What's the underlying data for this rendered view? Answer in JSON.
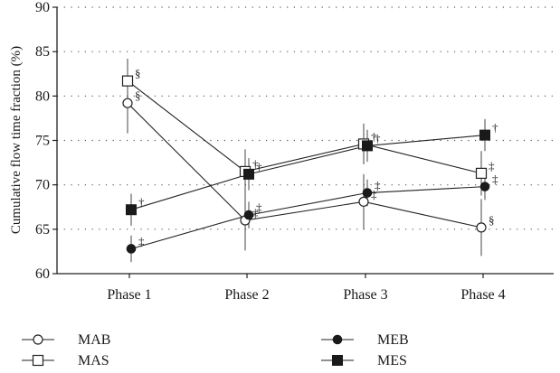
{
  "chart_data": {
    "type": "line",
    "ylabel": "Cumulative flow time fraction (%)",
    "xlabel": "",
    "ylim": [
      60,
      90
    ],
    "yticks": [
      60,
      65,
      70,
      75,
      80,
      85,
      90
    ],
    "categories": [
      "Phase 1",
      "Phase 2",
      "Phase 3",
      "Phase 4"
    ],
    "grid": "horizontal dotted",
    "legend_position": "bottom",
    "series": [
      {
        "name": "MAB",
        "marker": "open-circle",
        "values": [
          79.2,
          66.0,
          68.1,
          65.2
        ],
        "err_low": [
          75.8,
          62.6,
          65.0,
          62.0
        ],
        "err_high": [
          82.4,
          69.2,
          71.2,
          68.4
        ],
        "annotations": [
          "§",
          "‡",
          "‡",
          "§"
        ]
      },
      {
        "name": "MAS",
        "marker": "open-square",
        "values": [
          81.7,
          71.5,
          74.6,
          71.3
        ],
        "err_low": [
          79.2,
          69.0,
          72.3,
          68.8
        ],
        "err_high": [
          84.2,
          74.0,
          76.9,
          73.8
        ],
        "annotations": [
          "§",
          "†",
          "†",
          "‡"
        ]
      },
      {
        "name": "MEB",
        "marker": "filled-circle",
        "values": [
          62.8,
          66.6,
          69.1,
          69.8
        ],
        "err_low": [
          61.3,
          65.1,
          67.6,
          68.3
        ],
        "err_high": [
          64.3,
          68.1,
          70.6,
          71.3
        ],
        "annotations": [
          "‡",
          "‡",
          "‡",
          "‡"
        ]
      },
      {
        "name": "MES",
        "marker": "filled-square",
        "values": [
          67.2,
          71.2,
          74.4,
          75.6
        ],
        "err_low": [
          65.4,
          69.4,
          72.6,
          73.8
        ],
        "err_high": [
          69.0,
          73.0,
          76.2,
          77.4
        ],
        "annotations": [
          "†",
          "†",
          "†",
          "†"
        ]
      }
    ]
  }
}
